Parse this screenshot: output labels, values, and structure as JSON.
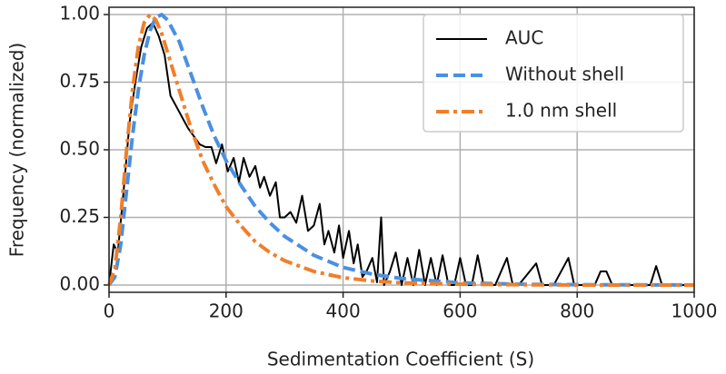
{
  "chart_data": {
    "type": "line",
    "xlabel": "Sedimentation Coefficient (S)",
    "ylabel": "Frequency (normalized)",
    "xlim": [
      0,
      1000
    ],
    "ylim": [
      -0.027,
      1.027
    ],
    "xticks": [
      0,
      200,
      400,
      600,
      800,
      1000
    ],
    "yticks": [
      {
        "value": 0,
        "label": "0.00"
      },
      {
        "value": 0.25,
        "label": "0.25"
      },
      {
        "value": 0.5,
        "label": "0.50"
      },
      {
        "value": 0.75,
        "label": "0.75"
      },
      {
        "value": 1,
        "label": "1.00"
      }
    ],
    "grid": true,
    "legend": "upper right",
    "series": [
      {
        "name": "AUC",
        "color": "#000000",
        "style": "solid",
        "x": [
          0,
          8,
          15,
          25,
          35,
          45,
          55,
          65,
          75,
          85,
          95,
          105,
          115,
          125,
          135,
          145,
          155,
          165,
          175,
          183,
          193,
          203,
          213,
          222,
          230,
          240,
          250,
          258,
          265,
          275,
          285,
          292,
          300,
          310,
          320,
          330,
          340,
          350,
          360,
          368,
          375,
          385,
          393,
          400,
          410,
          418,
          425,
          433,
          440,
          450,
          458,
          465,
          470,
          480,
          490,
          500,
          510,
          520,
          530,
          540,
          550,
          560,
          570,
          580,
          590,
          600,
          610,
          620,
          630,
          640,
          660,
          680,
          690,
          700,
          730,
          740,
          760,
          785,
          795,
          830,
          840,
          850,
          860,
          925,
          935,
          945,
          1000
        ],
        "values": [
          0,
          0.15,
          0.12,
          0.35,
          0.6,
          0.75,
          0.88,
          0.95,
          0.97,
          0.92,
          0.85,
          0.7,
          0.66,
          0.62,
          0.58,
          0.55,
          0.52,
          0.51,
          0.51,
          0.45,
          0.52,
          0.42,
          0.47,
          0.38,
          0.47,
          0.4,
          0.44,
          0.36,
          0.4,
          0.33,
          0.38,
          0.25,
          0.25,
          0.27,
          0.23,
          0.33,
          0.2,
          0.22,
          0.3,
          0.15,
          0.2,
          0.12,
          0.22,
          0.1,
          0.2,
          0.08,
          0.15,
          0.03,
          0.05,
          0.1,
          0.01,
          0.25,
          0,
          0.05,
          0.12,
          0,
          0.1,
          0,
          0.13,
          0,
          0.1,
          0,
          0.11,
          0,
          0,
          0.1,
          0,
          0,
          0.11,
          0,
          0,
          0.1,
          0,
          0,
          0.08,
          0,
          0,
          0.1,
          0,
          0,
          0.05,
          0.05,
          0,
          0,
          0.07,
          0,
          0
        ]
      },
      {
        "name": "Without shell",
        "color": "#4a90e2",
        "style": "dashed",
        "x": [
          0,
          10,
          20,
          30,
          40,
          50,
          60,
          70,
          80,
          90,
          100,
          120,
          140,
          160,
          180,
          200,
          225,
          250,
          275,
          300,
          350,
          400,
          450,
          500,
          600,
          700,
          800,
          1000
        ],
        "values": [
          0,
          0.03,
          0.15,
          0.35,
          0.55,
          0.72,
          0.85,
          0.94,
          0.99,
          1,
          0.98,
          0.9,
          0.78,
          0.66,
          0.55,
          0.46,
          0.37,
          0.29,
          0.23,
          0.18,
          0.11,
          0.065,
          0.04,
          0.024,
          0.008,
          0.003,
          0.001,
          0
        ]
      },
      {
        "name": "1.0 nm shell",
        "color": "#f07f2a",
        "style": "dashdot",
        "x": [
          0,
          10,
          20,
          30,
          40,
          50,
          60,
          70,
          80,
          90,
          100,
          120,
          140,
          160,
          180,
          200,
          225,
          250,
          275,
          300,
          350,
          400,
          450,
          500,
          600,
          700,
          800,
          1000
        ],
        "values": [
          0,
          0.06,
          0.25,
          0.5,
          0.72,
          0.88,
          0.97,
          1,
          0.98,
          0.93,
          0.86,
          0.72,
          0.58,
          0.46,
          0.37,
          0.29,
          0.22,
          0.16,
          0.12,
          0.09,
          0.05,
          0.027,
          0.015,
          0.008,
          0.003,
          0.001,
          0,
          0
        ]
      }
    ]
  }
}
